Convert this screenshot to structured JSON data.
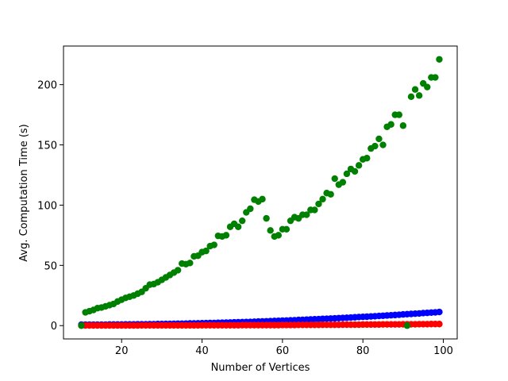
{
  "chart_data": {
    "type": "scatter",
    "x_label": "Number of Vertices",
    "y_label": "Avg. Computation Time (s)",
    "x": [
      10,
      11,
      12,
      13,
      14,
      15,
      16,
      17,
      18,
      19,
      20,
      21,
      22,
      23,
      24,
      25,
      26,
      27,
      28,
      29,
      30,
      31,
      32,
      33,
      34,
      35,
      36,
      37,
      38,
      39,
      40,
      41,
      42,
      43,
      44,
      45,
      46,
      47,
      48,
      49,
      50,
      51,
      52,
      53,
      54,
      55,
      56,
      57,
      58,
      59,
      60,
      61,
      62,
      63,
      64,
      65,
      66,
      67,
      68,
      69,
      70,
      71,
      72,
      73,
      74,
      75,
      76,
      77,
      78,
      79,
      80,
      81,
      82,
      83,
      84,
      85,
      86,
      87,
      88,
      89,
      90,
      91,
      92,
      93,
      94,
      95,
      96,
      97,
      98,
      99
    ],
    "series": [
      {
        "color": "#0000ff",
        "values": [
          0.8,
          0.8,
          0.8,
          0.8,
          0.8,
          0.8,
          0.8,
          0.9,
          0.9,
          0.9,
          0.9,
          1.0,
          1.0,
          1.0,
          1.1,
          1.1,
          1.1,
          1.2,
          1.2,
          1.3,
          1.3,
          1.4,
          1.4,
          1.5,
          1.6,
          1.6,
          1.7,
          1.8,
          1.8,
          1.9,
          2.0,
          2.1,
          2.2,
          2.2,
          2.3,
          2.4,
          2.5,
          2.6,
          2.7,
          2.8,
          2.9,
          3.0,
          3.1,
          3.2,
          3.4,
          3.5,
          3.6,
          3.7,
          3.9,
          4.0,
          4.1,
          4.2,
          4.4,
          4.5,
          4.7,
          4.8,
          5.0,
          5.1,
          5.3,
          5.4,
          5.6,
          5.7,
          5.9,
          6.0,
          6.2,
          6.4,
          6.5,
          6.7,
          6.9,
          7.1,
          7.3,
          7.4,
          7.6,
          7.8,
          8.0,
          8.2,
          8.4,
          8.6,
          8.8,
          9.0,
          9.3,
          9.5,
          9.7,
          9.9,
          10.1,
          10.4,
          10.6,
          10.8,
          11.0,
          11.3
        ]
      },
      {
        "color": "#ff0000",
        "values": [
          0.1,
          0.1,
          0.1,
          0.1,
          0.1,
          0.1,
          0.1,
          0.1,
          0.1,
          0.1,
          0.1,
          0.1,
          0.1,
          0.1,
          0.1,
          0.2,
          0.2,
          0.2,
          0.2,
          0.2,
          0.2,
          0.2,
          0.2,
          0.2,
          0.2,
          0.2,
          0.2,
          0.2,
          0.2,
          0.2,
          0.3,
          0.3,
          0.3,
          0.3,
          0.3,
          0.3,
          0.3,
          0.3,
          0.3,
          0.3,
          0.4,
          0.4,
          0.4,
          0.4,
          0.4,
          0.4,
          0.4,
          0.4,
          0.4,
          0.4,
          0.5,
          0.5,
          0.5,
          0.5,
          0.6,
          0.6,
          0.6,
          0.6,
          0.6,
          0.6,
          0.7,
          0.7,
          0.7,
          0.7,
          0.7,
          0.8,
          0.8,
          0.8,
          0.8,
          0.8,
          0.9,
          0.9,
          0.9,
          0.9,
          0.9,
          1.0,
          1.0,
          1.0,
          1.0,
          1.0,
          1.1,
          1.1,
          1.1,
          1.1,
          1.2,
          1.2,
          1.2,
          1.3,
          1.3,
          1.3
        ]
      },
      {
        "color": "#008000",
        "values": [
          0,
          11,
          12,
          13,
          14.5,
          15,
          16,
          17,
          18,
          20,
          21.5,
          23,
          24,
          25,
          26.5,
          28,
          31,
          34,
          34.5,
          36,
          38,
          40,
          42,
          44,
          46,
          51.5,
          51,
          52,
          57.5,
          58,
          61,
          62,
          66,
          67,
          74.5,
          74,
          75,
          82,
          84.5,
          82,
          87,
          94,
          97,
          104.5,
          103,
          105,
          89,
          79,
          74,
          75,
          80,
          80,
          87,
          90,
          89,
          92,
          92,
          96,
          96,
          101,
          105,
          110,
          109,
          122,
          117,
          119,
          126,
          130,
          128,
          133,
          138,
          139,
          147,
          149,
          155,
          150,
          165,
          167,
          175,
          175,
          166,
          0,
          190,
          196,
          191,
          201,
          198,
          206,
          206,
          221
        ]
      }
    ],
    "xlim": [
      5.55,
      103.45
    ],
    "ylim": [
      -11.05,
      232.05
    ],
    "xticks": [
      20,
      40,
      60,
      80,
      100
    ],
    "yticks": [
      0,
      50,
      100,
      150,
      200
    ]
  }
}
